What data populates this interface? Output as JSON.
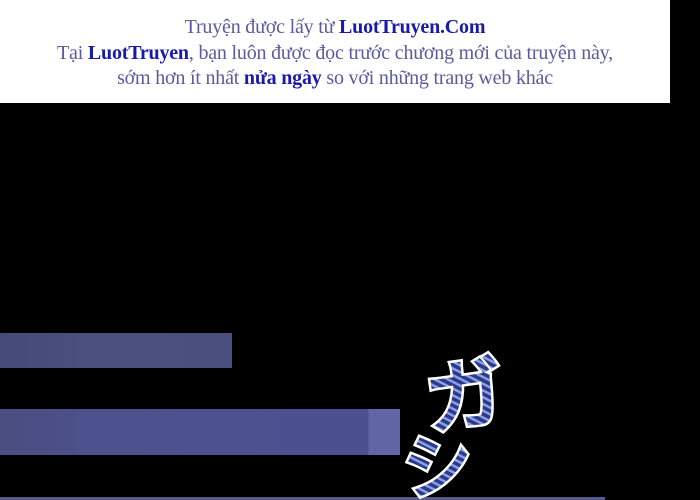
{
  "banner": {
    "line1_text": "Truyện được lấy từ ",
    "line1_brand": "LuotTruyen.Com",
    "line2_prefix": "Tại ",
    "line2_brand": "LuotTruyen",
    "line2_text": ", bạn luôn được đọc trước chương mới của truyện này,",
    "line3_text1": "sớm hơn ít nhất ",
    "line3_bold": "nửa ngày",
    "line3_text2": " so với những trang web khác"
  },
  "sfx": {
    "char1": "ガ",
    "char2": "シ"
  },
  "colors": {
    "banner_text": "#5a5a9e",
    "banner_brand": "#1a1aa8",
    "bar": "#4b4f7e",
    "sfx_fill": "#2a3a8c",
    "sfx_outline": "#ffffff"
  }
}
